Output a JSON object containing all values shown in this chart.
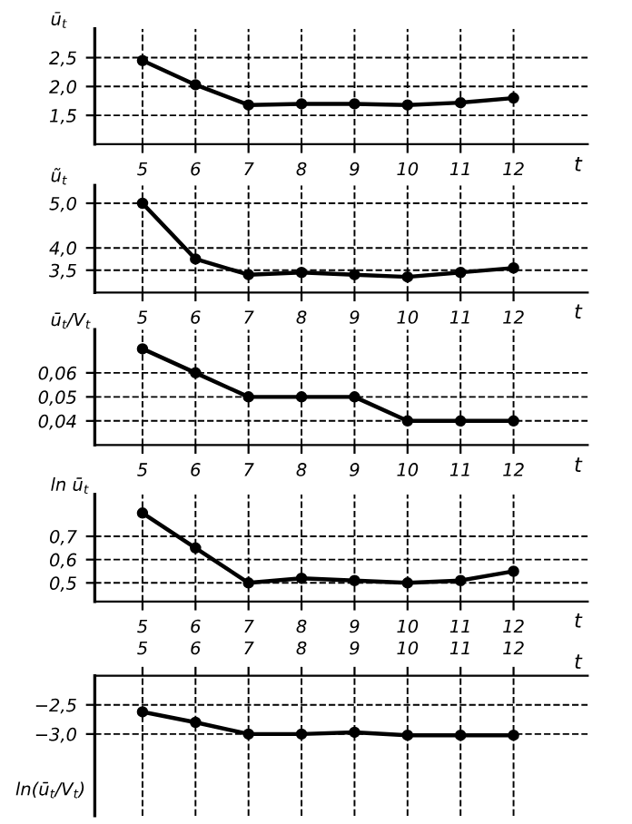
{
  "chart_data": [
    {
      "type": "line",
      "ylabel": "ū$_{t}$",
      "xlabel": "t",
      "categories": [
        "5",
        "6",
        "7",
        "8",
        "9",
        "10",
        "11",
        "12"
      ],
      "marker": "circle",
      "line_style": "solid",
      "grid": true,
      "ylim": [
        1.0,
        3.0
      ],
      "yticks": [
        {
          "value": 1.5,
          "label": "1,5"
        },
        {
          "value": 2.0,
          "label": "2,0"
        },
        {
          "value": 2.5,
          "label": "2,5"
        }
      ],
      "series": [
        {
          "color": "#000000",
          "values": [
            2.45,
            2.03,
            1.68,
            1.7,
            1.7,
            1.68,
            1.72,
            1.8
          ]
        }
      ]
    },
    {
      "type": "line",
      "ylabel": "ũ$_{t}$",
      "xlabel": "t",
      "categories": [
        "5",
        "6",
        "7",
        "8",
        "9",
        "10",
        "11",
        "12"
      ],
      "marker": "circle",
      "line_style": "solid",
      "grid": true,
      "ylim": [
        3.0,
        5.4
      ],
      "yticks": [
        {
          "value": 3.5,
          "label": "3,5"
        },
        {
          "value": 4.0,
          "label": "4,0"
        },
        {
          "value": 5.0,
          "label": "5,0"
        }
      ],
      "series": [
        {
          "color": "#000000",
          "values": [
            5.0,
            3.75,
            3.4,
            3.45,
            3.4,
            3.35,
            3.45,
            3.55
          ]
        }
      ]
    },
    {
      "type": "line",
      "ylabel": "ū$_{t}$/V$_{t}$",
      "xlabel": "t",
      "categories": [
        "5",
        "6",
        "7",
        "8",
        "9",
        "10",
        "11",
        "12"
      ],
      "marker": "circle",
      "line_style": "solid",
      "grid": true,
      "ylim": [
        0.03,
        0.078
      ],
      "yticks": [
        {
          "value": 0.04,
          "label": "0,04"
        },
        {
          "value": 0.05,
          "label": "0,05"
        },
        {
          "value": 0.06,
          "label": "0,06"
        }
      ],
      "series": [
        {
          "color": "#000000",
          "values": [
            0.07,
            0.06,
            0.05,
            0.05,
            0.05,
            0.04,
            0.04,
            0.04
          ]
        }
      ]
    },
    {
      "type": "line",
      "ylabel": "ln ū$_{t}$",
      "xlabel": "t",
      "categories": [
        "5",
        "6",
        "7",
        "8",
        "9",
        "10",
        "11",
        "12"
      ],
      "marker": "circle",
      "line_style": "solid",
      "grid": true,
      "ylim": [
        0.42,
        0.88
      ],
      "yticks": [
        {
          "value": 0.5,
          "label": "0,5"
        },
        {
          "value": 0.6,
          "label": "0,6"
        },
        {
          "value": 0.7,
          "label": "0,7"
        }
      ],
      "series": [
        {
          "color": "#000000",
          "values": [
            0.8,
            0.65,
            0.5,
            0.52,
            0.51,
            0.5,
            0.51,
            0.55
          ]
        }
      ]
    },
    {
      "type": "line",
      "ylabel": "ln(ū$_{t}$/V$_{t}$)",
      "x2label": "t",
      "categories": [
        "5",
        "6",
        "7",
        "8",
        "9",
        "10",
        "11",
        "12"
      ],
      "marker": "circle",
      "line_style": "solid",
      "grid": true,
      "ylim": [
        -4.4,
        -2.0
      ],
      "yticks": [
        {
          "value": -3.0,
          "label": "−3,0"
        },
        {
          "value": -2.5,
          "label": "−2,5"
        }
      ],
      "series": [
        {
          "color": "#000000",
          "values": [
            -2.62,
            -2.8,
            -3.0,
            -3.0,
            -2.97,
            -3.02,
            -3.02,
            -3.02
          ]
        }
      ]
    }
  ]
}
